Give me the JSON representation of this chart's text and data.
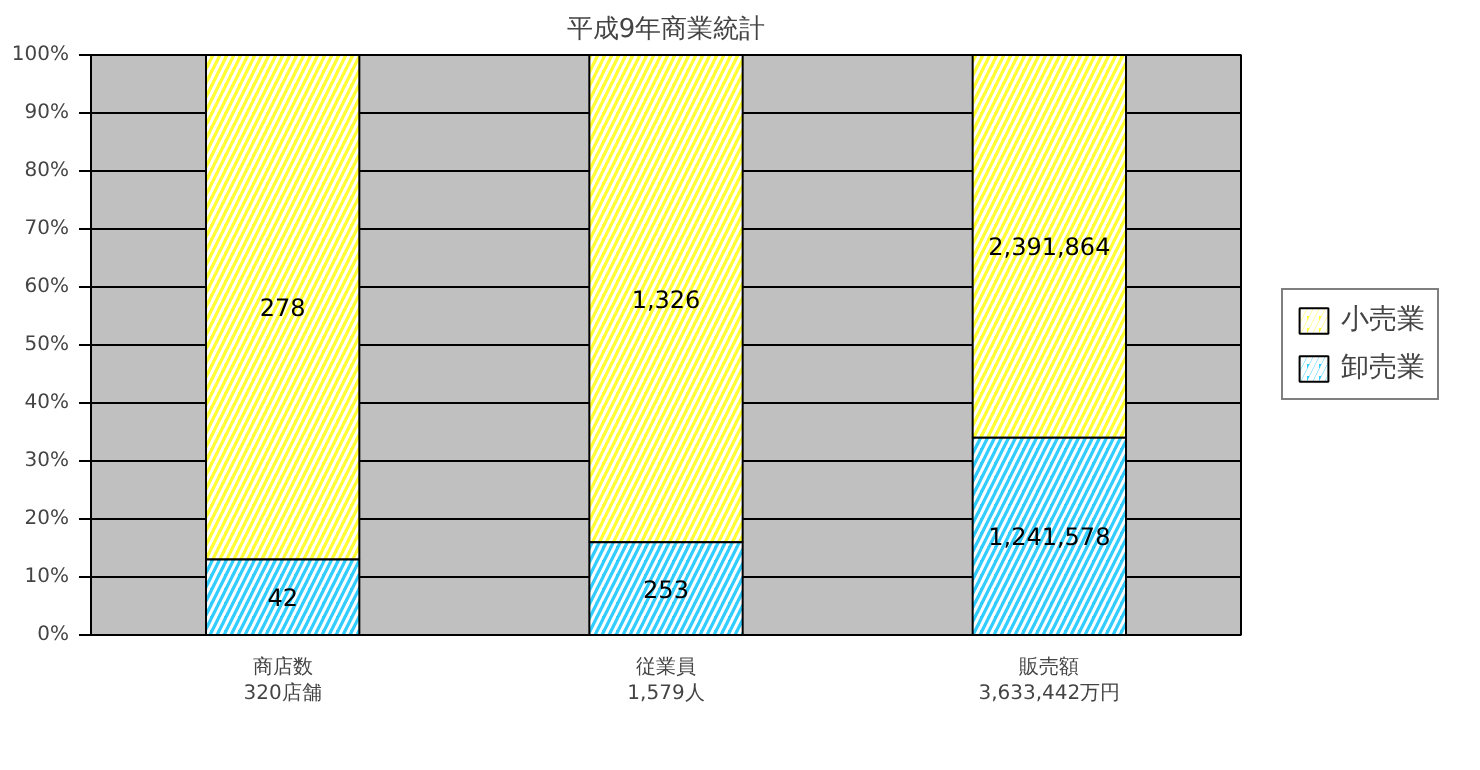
{
  "chart_data": {
    "type": "bar",
    "stacked": true,
    "title": "平成9年商業統計",
    "categories": [
      "商店数\n320店舗",
      "従業員\n1,579人",
      "販売額\n3,633,442万円"
    ],
    "series": [
      {
        "name": "卸売業",
        "color": "#33ccff",
        "values": [
          13,
          16,
          34
        ]
      },
      {
        "name": "小売業",
        "color": "#ffff33",
        "values": [
          87,
          84,
          66
        ]
      }
    ],
    "annotations": [
      "42",
      "253",
      "1,241,578",
      "278",
      "1,326",
      "2,391,864"
    ],
    "ylim": [
      0,
      100
    ],
    "yticks": [
      {
        "value": 0,
        "label": "0%"
      },
      {
        "value": 10,
        "label": "10%"
      },
      {
        "value": 20,
        "label": "20%"
      },
      {
        "value": 30,
        "label": "30%"
      },
      {
        "value": 40,
        "label": "40%"
      },
      {
        "value": 50,
        "label": "50%"
      },
      {
        "value": 60,
        "label": "60%"
      },
      {
        "value": 70,
        "label": "70%"
      },
      {
        "value": 80,
        "label": "80%"
      },
      {
        "value": 90,
        "label": "90%"
      },
      {
        "value": 100,
        "label": "100%"
      }
    ],
    "grid": "y",
    "legend": "right"
  }
}
